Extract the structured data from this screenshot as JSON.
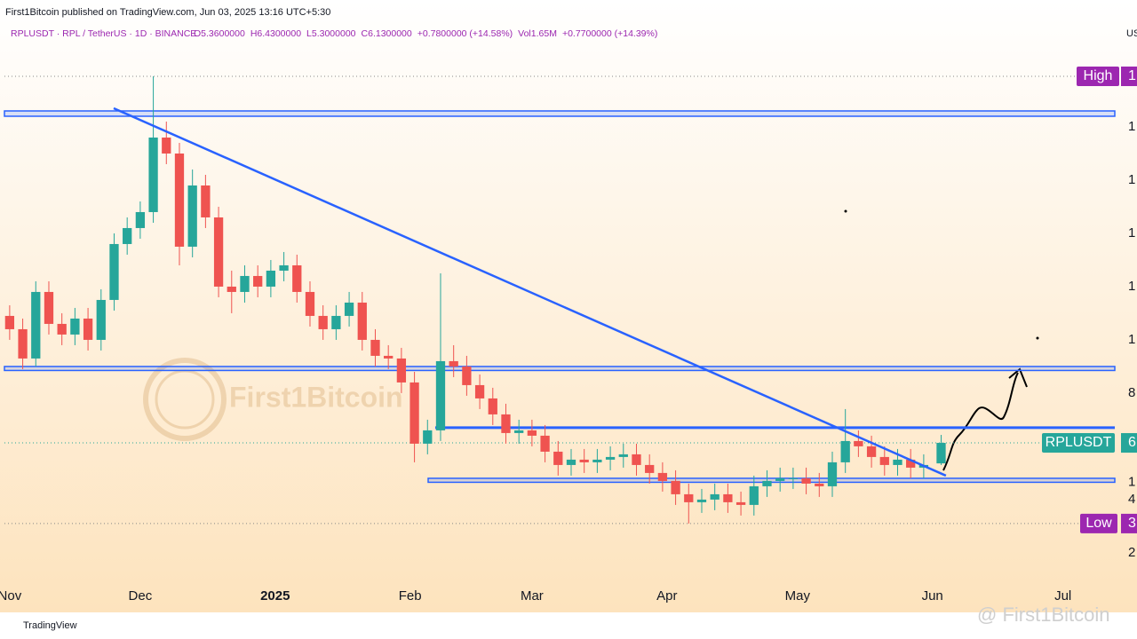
{
  "chart_data": {
    "type": "candlestick",
    "publisher": "First1Bitcoin published on TradingView.com, Jun 03, 2025 13:16 UTC+5:30",
    "symbol_line": "RPLUSDT · RPL / TetherUS · 1D · BINANCE",
    "ohlc_line": [
      "O5.3600000",
      "H6.4300000",
      "L5.3000000",
      "C6.1300000",
      "+0.7800000 (+14.58%)"
    ],
    "volume_line": [
      "Vol1.65M",
      "+0.7700000 (+14.39%)"
    ],
    "currency": "US",
    "footer": "TradingView",
    "watermark": "First1Bitcoin",
    "watermark_corner": "@ First1Bitcoin",
    "up_color": "#26a69a",
    "down_color": "#ef5350",
    "x": [
      6,
      9,
      12,
      15,
      18,
      21,
      24,
      27,
      30,
      33,
      36,
      39,
      42,
      45,
      48,
      51,
      54,
      57,
      60,
      63,
      66,
      69,
      72,
      75,
      78,
      81,
      84,
      87,
      90,
      93,
      96,
      99,
      102,
      105,
      108,
      111,
      114,
      117,
      120,
      123,
      126,
      129,
      132,
      135,
      138,
      141,
      144,
      147,
      150,
      153,
      156,
      159,
      162,
      165,
      168,
      171,
      174,
      177,
      180,
      183,
      186,
      189,
      192,
      195,
      198,
      201,
      204,
      207,
      210,
      213,
      216,
      220
    ],
    "open": [
      10.9,
      10.4,
      9.3,
      11.8,
      10.6,
      10.2,
      10.8,
      10.0,
      11.5,
      13.6,
      14.2,
      14.8,
      17.6,
      17.0,
      13.5,
      15.8,
      14.6,
      12.0,
      11.8,
      12.4,
      12.0,
      12.6,
      12.8,
      11.8,
      10.9,
      10.4,
      10.9,
      11.4,
      10.0,
      9.4,
      9.3,
      8.4,
      6.1,
      6.6,
      9.2,
      9.0,
      8.3,
      7.8,
      7.2,
      6.5,
      6.6,
      6.4,
      5.8,
      5.3,
      5.5,
      5.4,
      5.5,
      5.6,
      5.7,
      5.3,
      5.0,
      4.7,
      4.2,
      3.9,
      4.0,
      4.2,
      3.9,
      3.8,
      4.5,
      4.7,
      4.8,
      4.8,
      4.6,
      4.5,
      5.4,
      6.2,
      6.0,
      5.6,
      5.3,
      5.5,
      5.2,
      5.36
    ],
    "high": [
      11.3,
      10.8,
      12.2,
      12.2,
      11.0,
      11.2,
      11.2,
      11.9,
      14.0,
      14.6,
      15.2,
      19.9,
      18.2,
      17.4,
      16.4,
      16.2,
      15.0,
      12.6,
      12.8,
      12.8,
      13.0,
      13.3,
      13.2,
      12.2,
      11.3,
      11.3,
      11.8,
      11.8,
      10.4,
      9.8,
      9.7,
      8.8,
      7.0,
      12.5,
      9.8,
      9.4,
      8.7,
      8.2,
      7.6,
      7.0,
      7.0,
      6.8,
      6.2,
      5.9,
      5.9,
      5.9,
      6.0,
      6.1,
      6.1,
      5.7,
      5.4,
      5.1,
      4.6,
      4.4,
      4.6,
      4.6,
      4.3,
      4.9,
      5.1,
      5.2,
      5.2,
      5.2,
      5.0,
      5.8,
      7.4,
      6.6,
      6.4,
      6.0,
      5.9,
      5.9,
      5.7,
      6.43
    ],
    "low": [
      10.0,
      8.9,
      9.0,
      10.2,
      9.8,
      9.8,
      9.6,
      9.6,
      11.1,
      13.2,
      13.8,
      14.4,
      16.6,
      12.8,
      13.1,
      14.2,
      11.6,
      11.0,
      11.4,
      11.6,
      11.6,
      12.2,
      11.4,
      10.5,
      10.0,
      10.0,
      10.5,
      9.6,
      9.0,
      8.9,
      8.0,
      5.4,
      5.7,
      6.2,
      8.6,
      7.9,
      7.4,
      6.8,
      6.1,
      6.1,
      6.0,
      5.4,
      4.9,
      4.9,
      5.0,
      5.0,
      5.1,
      5.2,
      4.9,
      4.6,
      4.3,
      3.8,
      3.1,
      3.5,
      3.6,
      3.5,
      3.4,
      3.4,
      4.1,
      4.3,
      4.4,
      4.2,
      4.1,
      4.1,
      5.0,
      5.6,
      5.2,
      4.9,
      4.9,
      4.8,
      4.8,
      5.3
    ],
    "close": [
      10.4,
      9.3,
      11.8,
      10.6,
      10.2,
      10.8,
      10.0,
      11.5,
      13.6,
      14.2,
      14.8,
      17.6,
      17.0,
      13.5,
      15.8,
      14.6,
      12.0,
      11.8,
      12.4,
      12.0,
      12.6,
      12.8,
      11.8,
      10.9,
      10.4,
      10.9,
      11.4,
      10.0,
      9.4,
      9.3,
      8.4,
      6.1,
      6.6,
      9.2,
      9.0,
      8.3,
      7.8,
      7.2,
      6.5,
      6.6,
      6.4,
      5.8,
      5.3,
      5.5,
      5.4,
      5.5,
      5.6,
      5.7,
      5.3,
      5.0,
      4.7,
      4.2,
      3.9,
      4.0,
      4.2,
      3.9,
      3.8,
      4.5,
      4.7,
      4.8,
      4.8,
      4.6,
      4.5,
      5.4,
      6.2,
      6.0,
      5.6,
      5.3,
      5.5,
      5.2,
      5.3,
      6.13
    ],
    "xlim": [
      4.8,
      259.9
    ],
    "xticks": [
      {
        "value": 6,
        "label": "Nov"
      },
      {
        "value": 36,
        "label": "Dec"
      },
      {
        "value": 67,
        "label": "2025"
      },
      {
        "value": 98,
        "label": "Feb"
      },
      {
        "value": 126,
        "label": "Mar"
      },
      {
        "value": 157,
        "label": "Apr"
      },
      {
        "value": 187,
        "label": "May"
      },
      {
        "value": 218,
        "label": "Jun"
      },
      {
        "value": 248,
        "label": "Jul"
      }
    ],
    "ylim": [
      0.93,
      21.1
    ],
    "yticks": [
      {
        "value": 18,
        "label": "1"
      },
      {
        "value": 16,
        "label": "1"
      },
      {
        "value": 14,
        "label": "1"
      },
      {
        "value": 12,
        "label": "1"
      },
      {
        "value": 10,
        "label": "1"
      },
      8,
      {
        "value": 4,
        "label": "4"
      },
      {
        "value": 2,
        "label": "2"
      }
    ],
    "zones": [
      {
        "low": 18.4,
        "high": 18.6
      },
      {
        "low": 8.85,
        "high": 9.0
      },
      {
        "low": 4.65,
        "high": 4.8
      }
    ],
    "level": 6.7,
    "trendline": {
      "x": [
        29.9,
        221.1
      ],
      "y": [
        18.7,
        4.9
      ]
    },
    "tags": {
      "high": {
        "text": "High",
        "value": "1"
      },
      "low": {
        "text": "Low",
        "value": "3"
      },
      "last": {
        "text": "RPLUSDT",
        "value": "6"
      },
      "zone_value": "1"
    }
  }
}
